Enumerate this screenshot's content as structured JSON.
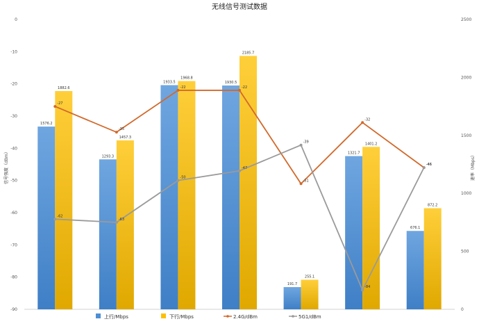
{
  "chart_data": {
    "type": "bar",
    "title": "无线信号测试数据",
    "categories": [
      "",
      "",
      "",
      "",
      "",
      "",
      ""
    ],
    "ylabel_left": "信号强度（dBm）",
    "ylabel_right": "速率（Mbps）",
    "ylim_left": [
      -90,
      0
    ],
    "yticks_left": [
      0,
      -10,
      -20,
      -30,
      -40,
      -50,
      -60,
      -70,
      -80,
      -90
    ],
    "ylim_right": [
      0,
      2500
    ],
    "yticks_right": [
      0,
      500,
      1000,
      1500,
      2000,
      2500
    ],
    "grid": false,
    "legend_position": "bottom",
    "series": [
      {
        "name": "上行/Mbps",
        "kind": "bar",
        "axis": "right",
        "color": "#4e8fd4",
        "values": [
          1576.2,
          1293.3,
          1933.5,
          1930.5,
          191.7,
          1321.7,
          676.1
        ],
        "labels": [
          "1576.2",
          "1293.3",
          "1933.5",
          "1930.5",
          "191.7",
          "1321.7",
          "676.1"
        ]
      },
      {
        "name": "下行/Mbps",
        "kind": "bar",
        "axis": "right",
        "color": "#fcc000",
        "values": [
          1882.6,
          1457.3,
          1968.8,
          2185.7,
          255.1,
          1401.2,
          872.2
        ],
        "labels": [
          "1882.6",
          "1457.3",
          "1968.8",
          "2185.7",
          "255.1",
          "1401.2",
          "872.2"
        ]
      },
      {
        "name": "2.4G/dBm",
        "kind": "line",
        "axis": "left",
        "color": "#d2692b",
        "values": [
          -27,
          -35,
          -22,
          -22,
          -51,
          -32,
          -46
        ],
        "labels": [
          "-27",
          "-35",
          "-22",
          "-22",
          "-51",
          "-32",
          "-46"
        ]
      },
      {
        "name": "5G1/dBm",
        "kind": "line",
        "axis": "left",
        "color": "#9a9a9a",
        "values": [
          -62,
          -63,
          -50,
          -47,
          -39,
          -84,
          -46
        ],
        "labels": [
          "-62",
          "-63",
          "-50",
          "-47",
          "-39",
          "-84",
          "-46"
        ]
      }
    ]
  }
}
